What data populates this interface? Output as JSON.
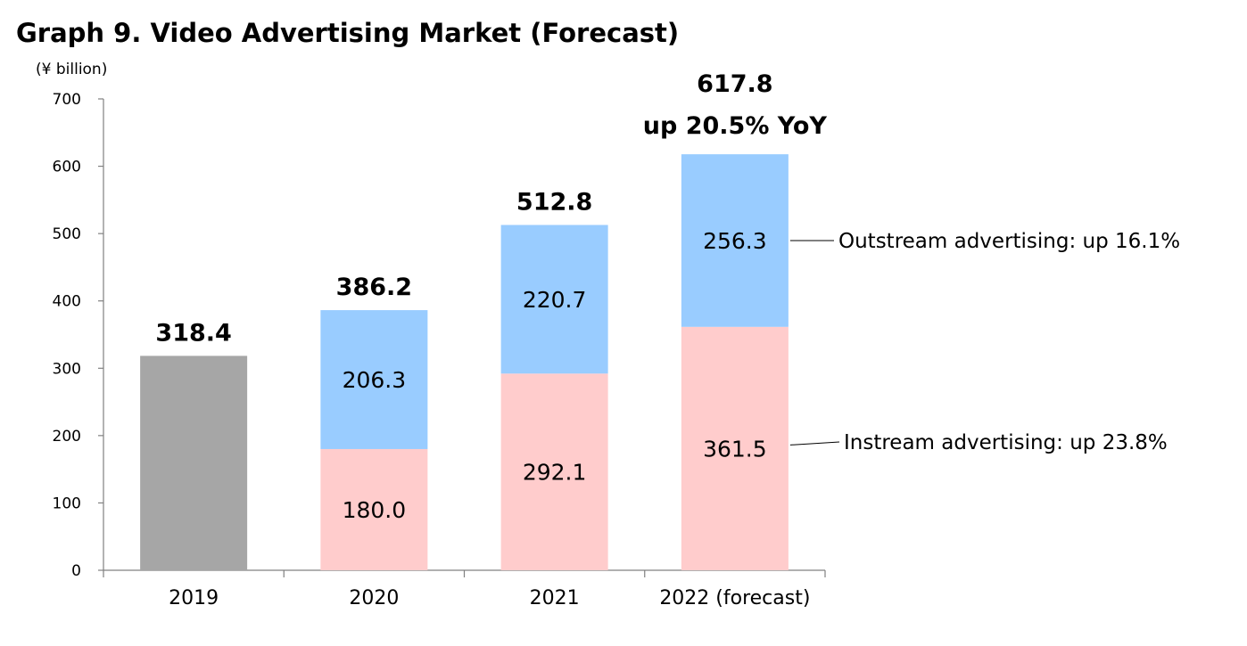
{
  "chart_data": {
    "type": "bar",
    "stacked": true,
    "title": "Graph 9. Video Advertising Market (Forecast)",
    "unit_label": "(¥ billion)",
    "xlabel": "",
    "ylabel": "",
    "ylim": [
      0,
      700
    ],
    "yticks": [
      0,
      100,
      200,
      300,
      400,
      500,
      600,
      700
    ],
    "grid": false,
    "categories": [
      "2019",
      "2020",
      "2021",
      "2022 (forecast)"
    ],
    "series": [
      {
        "name": "Total (2019)",
        "color": "#a6a6a6",
        "values": [
          318.4,
          null,
          null,
          null
        ],
        "labels": [
          "",
          "",
          "",
          ""
        ]
      },
      {
        "name": "Instream advertising",
        "color": "#ffcccc",
        "values": [
          null,
          180.0,
          292.1,
          361.5
        ],
        "labels": [
          "",
          "180.0",
          "292.1",
          "361.5"
        ]
      },
      {
        "name": "Outstream advertising",
        "color": "#99ccff",
        "values": [
          null,
          206.3,
          220.7,
          256.3
        ],
        "labels": [
          "",
          "206.3",
          "220.7",
          "256.3"
        ]
      }
    ],
    "totals": [
      {
        "value": 318.4,
        "label": "318.4",
        "note": ""
      },
      {
        "value": 386.2,
        "label": "386.2",
        "note": ""
      },
      {
        "value": 512.8,
        "label": "512.8",
        "note": ""
      },
      {
        "value": 617.8,
        "label": "617.8",
        "note": "up 20.5% YoY"
      }
    ],
    "annotations": [
      {
        "series": "Outstream advertising",
        "text": "Outstream advertising: up 16.1%"
      },
      {
        "series": "Instream advertising",
        "text": "Instream advertising: up 23.8%"
      }
    ]
  }
}
